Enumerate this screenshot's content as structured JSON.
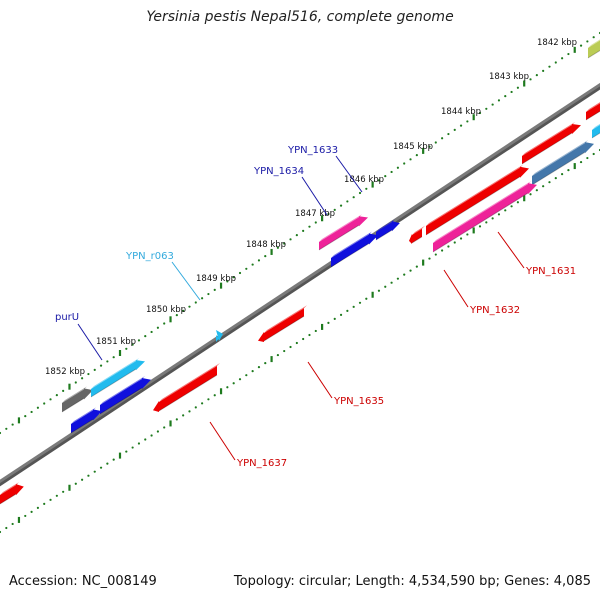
{
  "title": "Yersinia pestis Nepal516, complete genome",
  "footer": {
    "accession": "Accession: NC_008149",
    "summary": "Topology: circular; Length: 4,534,590 bp; Genes: 4,085"
  },
  "colors": {
    "backbone": "#7a7a7a",
    "ticks": "#1e7a1e",
    "label_blue": "#1a1aa6",
    "label_cyan": "#33aadd",
    "label_red": "#cc0000",
    "red": "#ee0000",
    "pink": "#ee2299",
    "blue": "#1010dd",
    "cyan": "#22bbee",
    "gray": "#666666",
    "steel": "#4477aa",
    "lime": "#bbcc55"
  },
  "chart_data": {
    "type": "genome-map",
    "tick_labels": [
      "1842 kbp",
      "1843 kbp",
      "1844 kbp",
      "1845 kbp",
      "1846 kbp",
      "1847 kbp",
      "1848 kbp",
      "1849 kbp",
      "1850 kbp",
      "1851 kbp",
      "1852 kbp"
    ],
    "gene_labels": [
      {
        "name": "YPN_1633",
        "color": "blue"
      },
      {
        "name": "YPN_1634",
        "color": "blue"
      },
      {
        "name": "YPN_r063",
        "color": "cyan"
      },
      {
        "name": "purU",
        "color": "blue"
      },
      {
        "name": "YPN_1631",
        "color": "red"
      },
      {
        "name": "YPN_1632",
        "color": "red"
      },
      {
        "name": "YPN_1635",
        "color": "red"
      },
      {
        "name": "YPN_1637",
        "color": "red"
      }
    ]
  }
}
